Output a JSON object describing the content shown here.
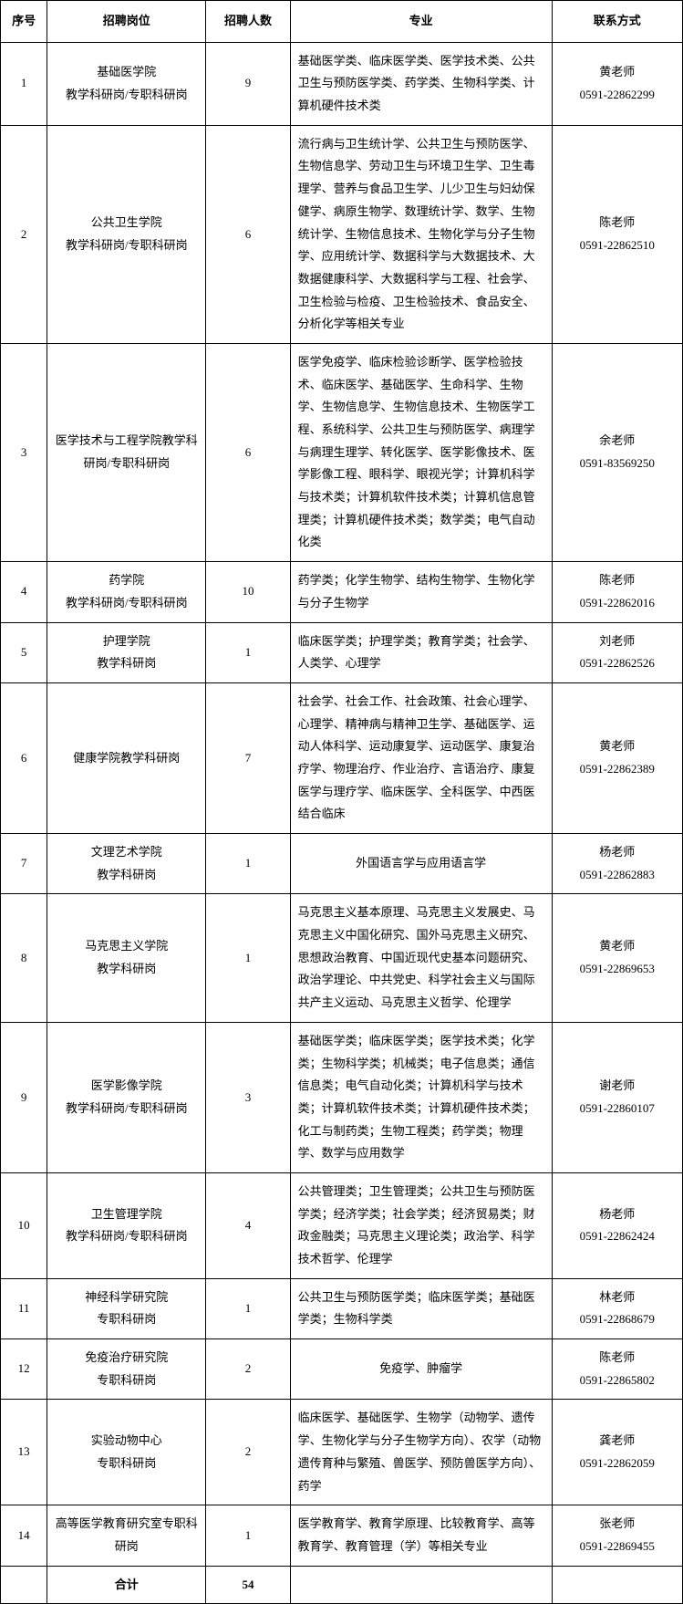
{
  "headers": {
    "seq": "序号",
    "position": "招聘岗位",
    "count": "招聘人数",
    "major": "专业",
    "contact": "联系方式"
  },
  "rows": [
    {
      "seq": "1",
      "dept": "基础医学院",
      "post": "教学科研岗/专职科研岗",
      "count": "9",
      "major": "基础医学类、临床医学类、医学技术类、公共卫生与预防医学类、药学类、生物科学类、计算机硬件技术类",
      "teacher": "黄老师",
      "phone": "0591-22862299"
    },
    {
      "seq": "2",
      "dept": "公共卫生学院",
      "post": "教学科研岗/专职科研岗",
      "count": "6",
      "major": "流行病与卫生统计学、公共卫生与预防医学、生物信息学、劳动卫生与环境卫生学、卫生毒理学、营养与食品卫生学、儿少卫生与妇幼保健学、病原生物学、数理统计学、数学、生物统计学、生物信息技术、生物化学与分子生物学、应用统计学、数据科学与大数据技术、大数据健康科学、大数据科学与工程、社会学、卫生检验与检疫、卫生检验技术、食品安全、分析化学等相关专业",
      "teacher": "陈老师",
      "phone": "0591-22862510"
    },
    {
      "seq": "3",
      "dept": "医学技术与工程学院教学科研岗/专职科研岗",
      "post": "",
      "count": "6",
      "major": "医学免疫学、临床检验诊断学、医学检验技术、临床医学、基础医学、生命科学、生物学、生物信息学、生物信息技术、生物医学工程、系统科学、公共卫生与预防医学、病理学与病理生理学、转化医学、医学影像技术、医学影像工程、眼科学、眼视光学；计算机科学与技术类；计算机软件技术类；计算机信息管理类；计算机硬件技术类；数学类；电气自动化类",
      "teacher": "余老师",
      "phone": "0591-83569250"
    },
    {
      "seq": "4",
      "dept": "药学院",
      "post": "教学科研岗/专职科研岗",
      "count": "10",
      "major": "药学类；化学生物学、结构生物学、生物化学与分子生物学",
      "teacher": "陈老师",
      "phone": "0591-22862016"
    },
    {
      "seq": "5",
      "dept": "护理学院",
      "post": "教学科研岗",
      "count": "1",
      "major": "临床医学类；护理学类；教育学类；社会学、人类学、心理学",
      "teacher": "刘老师",
      "phone": "0591-22862526"
    },
    {
      "seq": "6",
      "dept": "健康学院教学科研岗",
      "post": "",
      "count": "7",
      "major": "社会学、社会工作、社会政策、社会心理学、心理学、精神病与精神卫生学、基础医学、运动人体科学、运动康复学、运动医学、康复治疗学、物理治疗、作业治疗、言语治疗、康复医学与理疗学、临床医学、全科医学、中西医结合临床",
      "teacher": "黄老师",
      "phone": "0591-22862389"
    },
    {
      "seq": "7",
      "dept": "文理艺术学院",
      "post": "教学科研岗",
      "count": "1",
      "major": "外国语言学与应用语言学",
      "teacher": "杨老师",
      "phone": "0591-22862883"
    },
    {
      "seq": "8",
      "dept": "马克思主义学院",
      "post": "教学科研岗",
      "count": "1",
      "major": "马克思主义基本原理、马克思主义发展史、马克思主义中国化研究、国外马克思主义研究、思想政治教育、中国近现代史基本问题研究、政治学理论、中共党史、科学社会主义与国际共产主义运动、马克思主义哲学、伦理学",
      "teacher": "黄老师",
      "phone": "0591-22869653"
    },
    {
      "seq": "9",
      "dept": "医学影像学院",
      "post": "教学科研岗/专职科研岗",
      "count": "3",
      "major": "基础医学类；临床医学类；医学技术类；化学类；生物科学类；机械类；电子信息类；通信信息类；电气自动化类；计算机科学与技术类；计算机软件技术类；计算机硬件技术类；化工与制药类；生物工程类；药学类；物理学、数学与应用数学",
      "teacher": "谢老师",
      "phone": "0591-22860107"
    },
    {
      "seq": "10",
      "dept": "卫生管理学院",
      "post": "教学科研岗/专职科研岗",
      "count": "4",
      "major": "公共管理类；卫生管理类；公共卫生与预防医学类；经济学类；社会学类；经济贸易类；财政金融类；马克思主义理论类；政治学、科学技术哲学、伦理学",
      "teacher": "杨老师",
      "phone": "0591-22862424"
    },
    {
      "seq": "11",
      "dept": "神经科学研究院",
      "post": "专职科研岗",
      "count": "1",
      "major": "公共卫生与预防医学类；临床医学类；基础医学类；生物科学类",
      "teacher": "林老师",
      "phone": "0591-22868679"
    },
    {
      "seq": "12",
      "dept": "免疫治疗研究院",
      "post": "专职科研岗",
      "count": "2",
      "major": "免疫学、肿瘤学",
      "teacher": "陈老师",
      "phone": "0591-22865802"
    },
    {
      "seq": "13",
      "dept": "实验动物中心",
      "post": "专职科研岗",
      "count": "2",
      "major": "临床医学、基础医学、生物学（动物学、遗传学、生物化学与分子生物学方向）、农学（动物遗传育种与繁殖、兽医学、预防兽医学方向）、药学",
      "teacher": "龚老师",
      "phone": "0591-22862059"
    },
    {
      "seq": "14",
      "dept": "高等医学教育研究室专职科研岗",
      "post": "",
      "count": "1",
      "major": "医学教育学、教育学原理、比较教育学、高等教育学、教育管理（学）等相关专业",
      "teacher": "张老师",
      "phone": "0591-22869455"
    }
  ],
  "total": {
    "label": "合计",
    "count": "54"
  }
}
